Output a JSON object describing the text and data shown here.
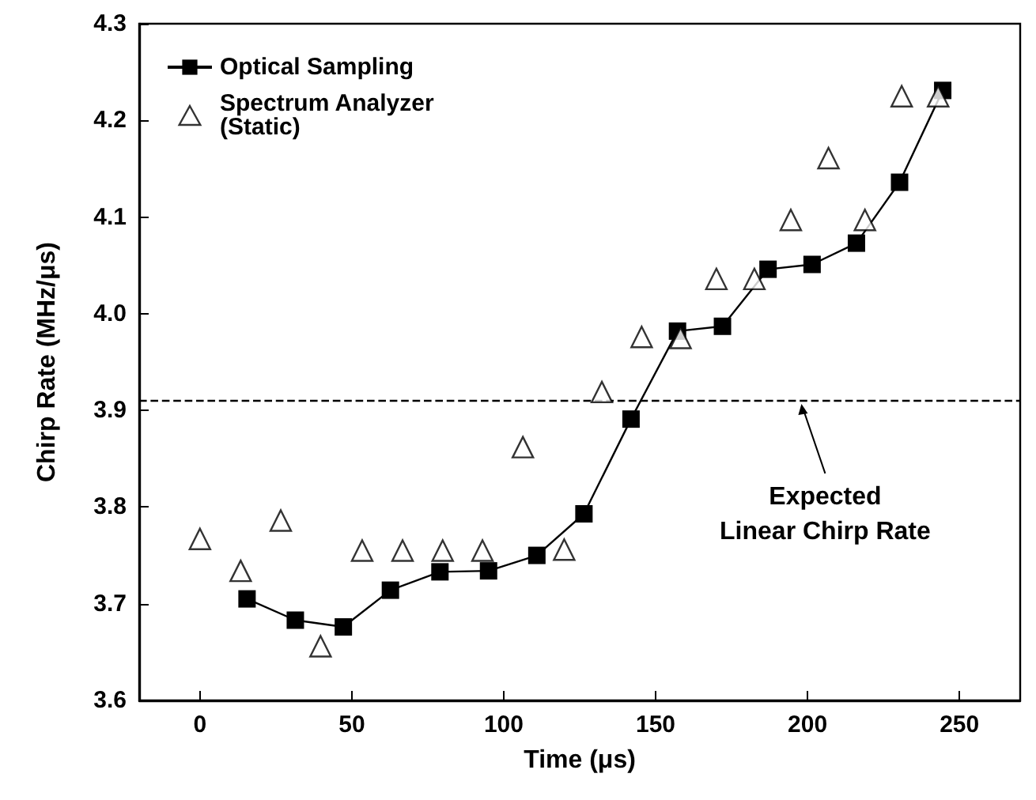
{
  "chart_data": {
    "type": "line",
    "xlabel": "Time (μs)",
    "ylabel": "Chirp Rate (MHz/μs)",
    "xlim": [
      -20,
      270
    ],
    "xticks": [
      0,
      50,
      100,
      150,
      200,
      250
    ],
    "ylim": [
      3.6,
      4.3
    ],
    "yticks": [
      3.6,
      3.7,
      3.8,
      3.9,
      {
        "value": 4.0,
        "label": "4.0"
      },
      4.1,
      4.2,
      4.3
    ],
    "grid": false,
    "legend": "top left",
    "series": [
      {
        "name": "Optical Sampling",
        "marker": "square",
        "color": "#000000",
        "x": [
          15.5,
          31.4,
          47.2,
          62.7,
          79,
          95,
          110.9,
          126.4,
          141.9,
          157.2,
          172,
          187,
          201.5,
          216.1,
          230.3,
          244.5
        ],
        "values": [
          3.705,
          3.683,
          3.676,
          3.714,
          3.733,
          3.734,
          3.75,
          3.793,
          3.891,
          3.982,
          3.987,
          4.046,
          4.051,
          4.073,
          4.136,
          4.231
        ]
      },
      {
        "name": "Spectrum Analyzer\n(Static)",
        "type": "scatter",
        "marker": "triangle",
        "color": "#000000",
        "x": [
          0,
          13.4,
          26.6,
          39.7,
          53.4,
          66.7,
          79.9,
          93,
          106.3,
          119.9,
          132.3,
          145.4,
          158.2,
          170,
          182.5,
          194.5,
          206.9,
          218.9,
          231,
          243
        ],
        "values": [
          3.767,
          3.734,
          3.786,
          3.656,
          3.755,
          3.755,
          3.755,
          3.755,
          3.862,
          3.756,
          3.919,
          3.976,
          3.975,
          4.036,
          4.036,
          4.097,
          4.161,
          4.097,
          4.225,
          4.225
        ]
      }
    ],
    "ref_lines": [
      {
        "axis": "y",
        "value": 3.91,
        "line_style": "dashed",
        "color": "#000000"
      }
    ],
    "annotations": [
      {
        "text": "Expected\nLinear Chirp Rate",
        "x": 198,
        "y": 3.91
      }
    ]
  }
}
